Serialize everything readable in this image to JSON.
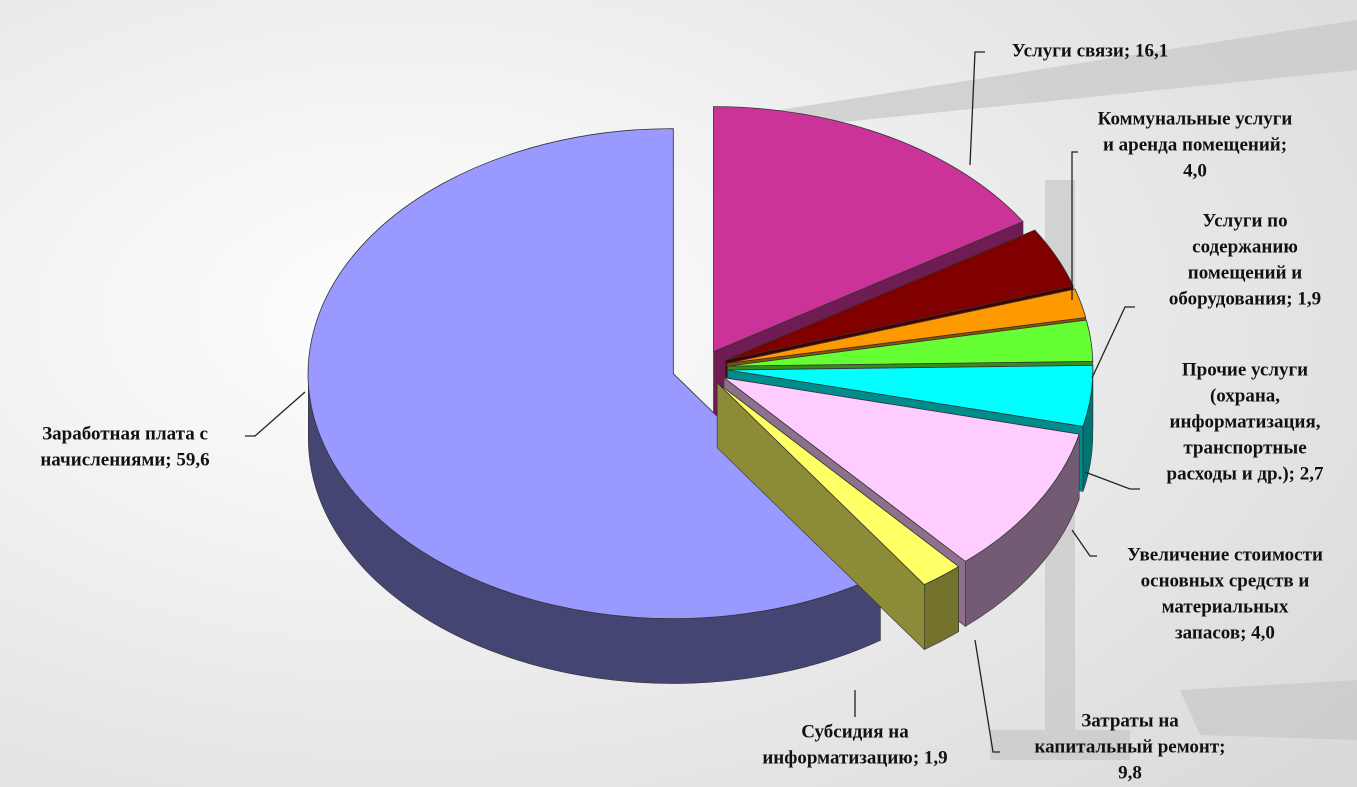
{
  "chart_data": {
    "type": "pie3d",
    "values": [
      16.1,
      4.0,
      1.9,
      2.7,
      4.0,
      9.8,
      1.9,
      59.6
    ],
    "value_labels": [
      [
        "Услуги связи; 16,1"
      ],
      [
        "Коммунальные услуги",
        "и аренда помещений;",
        "4,0"
      ],
      [
        "Услуги по",
        "содержанию",
        "помещений и",
        "оборудования; 1,9"
      ],
      [
        "Прочие услуги",
        "(охрана,",
        "информатизация,",
        "транспортные",
        "расходы и др.); 2,7"
      ],
      [
        "Увеличение стоимости",
        "основных средств и",
        "материальных",
        "запасов; 4,0"
      ],
      [
        "Затраты на",
        "капитальный ремонт;",
        "9,8"
      ],
      [
        "Субсидия на",
        "информатизацию; 1,9"
      ],
      [
        "Заработная плата с",
        "начислениями; 59,6"
      ]
    ],
    "colors": [
      "#cc3399",
      "#800000",
      "#ff9900",
      "#66ff33",
      "#00ffff",
      "#ffccff",
      "#ffff66",
      "#9999ff"
    ]
  }
}
